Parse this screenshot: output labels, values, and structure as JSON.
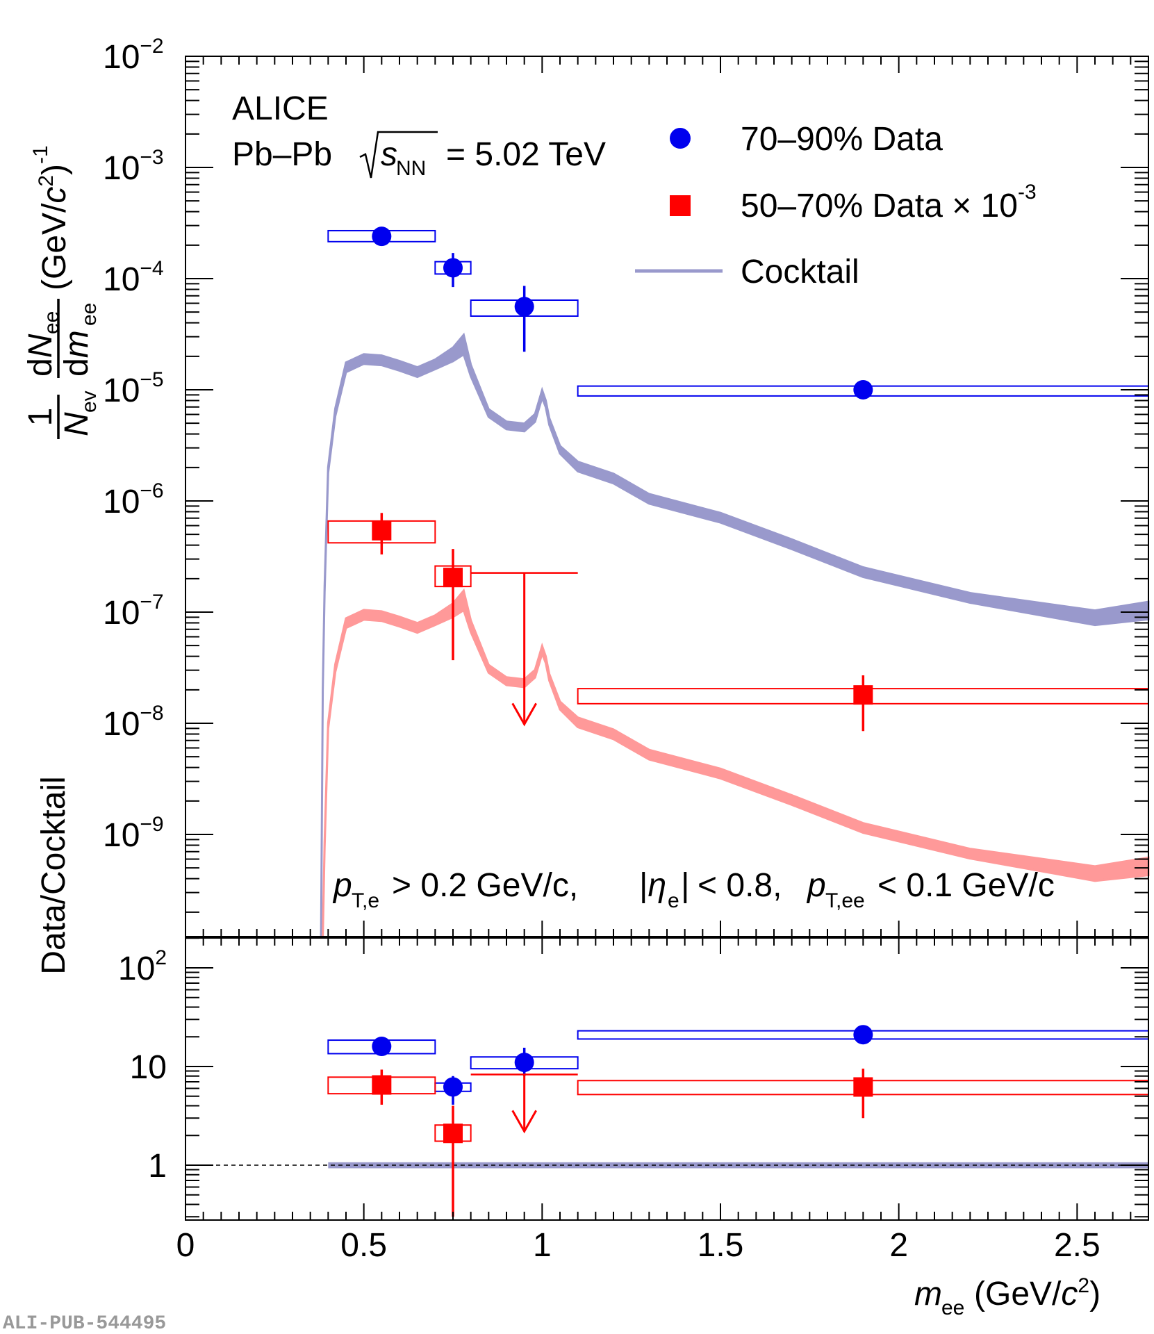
{
  "chart_data": {
    "type": "scatter",
    "experiment": "ALICE",
    "system": "Pb–Pb",
    "energy": "= 5.02 TeV",
    "cuts": {
      "pt_e": "> 0.2 GeV/c,",
      "eta": "< 0.8,",
      "pt_ee": "< 0.1 GeV/c"
    },
    "legend": [
      {
        "label": "70–90% Data",
        "color": "#0000ee",
        "marker": "circle"
      },
      {
        "label": "50–70% Data × 10",
        "exponent": "-3",
        "color": "#ff0000",
        "marker": "square"
      },
      {
        "label": "Cocktail",
        "color": "#9999cc",
        "marker": "band"
      }
    ],
    "xlabel": "m_ee (GeV/c²)",
    "xlim": [
      0,
      2.7
    ],
    "xticks": [
      0,
      0.5,
      1,
      1.5,
      2,
      2.5
    ],
    "xtick_labels": [
      "0",
      "0.5",
      "1",
      "1.5",
      "2",
      "2.5"
    ],
    "top_panel": {
      "ylabel": "(1/N_ev) dN_ee/dm_ee (GeV/c²)⁻¹",
      "yscale": "log",
      "ylim": [
        1.4e-10,
        0.01
      ],
      "ytick_labels": [
        {
          "exp": "−2",
          "value": 0.01
        },
        {
          "exp": "−3",
          "value": 0.001
        },
        {
          "exp": "−4",
          "value": 0.0001
        },
        {
          "exp": "−5",
          "value": 1e-05
        },
        {
          "exp": "−6",
          "value": 1e-06
        },
        {
          "exp": "−7",
          "value": 1e-07
        },
        {
          "exp": "−8",
          "value": 1e-08
        },
        {
          "exp": "−9",
          "value": 1e-09
        }
      ],
      "series": [
        {
          "name": "70–90% Data",
          "color": "#0000ee",
          "marker": "circle",
          "points": [
            {
              "x": 0.55,
              "xlo": 0.4,
              "xhi": 0.7,
              "y": 0.00024,
              "ylo": 0.00023,
              "yhi": 0.00025,
              "syslo": 0.000215,
              "syshi": 0.00027
            },
            {
              "x": 0.75,
              "xlo": 0.7,
              "xhi": 0.8,
              "y": 0.000125,
              "ylo": 8.4e-05,
              "yhi": 0.00017,
              "syslo": 0.00011,
              "syshi": 0.000142
            },
            {
              "x": 0.95,
              "xlo": 0.8,
              "xhi": 1.1,
              "y": 5.6e-05,
              "ylo": 2.2e-05,
              "yhi": 8.6e-05,
              "syslo": 4.6e-05,
              "syshi": 6.4e-05
            },
            {
              "x": 1.9,
              "xlo": 1.1,
              "xhi": 2.7,
              "y": 1e-05,
              "ylo": 8.7e-06,
              "yhi": 1.1e-05,
              "syslo": 8.8e-06,
              "syshi": 1.08e-05
            }
          ]
        },
        {
          "name": "50–70% Data × 10^-3",
          "color": "#ff0000",
          "marker": "square",
          "points": [
            {
              "x": 0.55,
              "xlo": 0.4,
              "xhi": 0.7,
              "y": 5.4e-07,
              "ylo": 3.3e-07,
              "yhi": 7.8e-07,
              "syslo": 4.2e-07,
              "syshi": 6.6e-07
            },
            {
              "x": 0.75,
              "xlo": 0.7,
              "xhi": 0.8,
              "y": 2.05e-07,
              "ylo": 3.7e-08,
              "yhi": 3.7e-07,
              "syslo": 1.7e-07,
              "syshi": 2.6e-07
            },
            {
              "x": 1.9,
              "xlo": 1.1,
              "xhi": 2.7,
              "y": 1.8e-08,
              "ylo": 8.5e-09,
              "yhi": 2.7e-08,
              "syslo": 1.5e-08,
              "syshi": 2.05e-08
            }
          ],
          "upper_limits": [
            {
              "x": 0.95,
              "xlo": 0.8,
              "xhi": 1.1,
              "y": 2.25e-07,
              "arrow_to": 9.8e-09
            }
          ]
        }
      ],
      "cocktail_band": {
        "x": [
          0.38,
          0.385,
          0.39,
          0.4,
          0.42,
          0.45,
          0.5,
          0.55,
          0.6,
          0.65,
          0.7,
          0.75,
          0.78,
          0.8,
          0.85,
          0.9,
          0.95,
          0.98,
          1.0,
          1.01,
          1.02,
          1.05,
          1.1,
          1.2,
          1.3,
          1.5,
          1.7,
          1.9,
          2.2,
          2.55,
          2.7
        ],
        "center": [
          1e-10,
          2e-08,
          1.6e-07,
          1.9e-06,
          6.3e-06,
          1.6e-05,
          1.9e-05,
          1.85e-05,
          1.65e-05,
          1.45e-05,
          1.7e-05,
          2.1e-05,
          2.6e-05,
          1.5e-05,
          6.2e-06,
          4.8e-06,
          4.6e-06,
          5.6e-06,
          9.2e-06,
          7.5e-06,
          5.2e-06,
          2.9e-06,
          2.05e-06,
          1.6e-06,
          1.05e-06,
          7.1e-07,
          4.1e-07,
          2.3e-07,
          1.35e-07,
          9e-08,
          1.05e-07
        ],
        "rel_halfwidth": [
          0.0,
          0.0,
          0.06,
          0.06,
          0.08,
          0.1,
          0.1,
          0.1,
          0.1,
          0.1,
          0.1,
          0.14,
          0.2,
          0.12,
          0.08,
          0.08,
          0.08,
          0.08,
          0.08,
          0.07,
          0.07,
          0.08,
          0.1,
          0.1,
          0.1,
          0.1,
          0.1,
          0.1,
          0.1,
          0.15,
          0.18
        ],
        "scale_50_70": 0.005,
        "color_70_90": "#9999cc",
        "color_50_70": "#ff9999"
      }
    },
    "bottom_panel": {
      "ylabel": "Data/Cocktail",
      "yscale": "log",
      "ylim": [
        0.3,
        200
      ],
      "ytick_labels": [
        {
          "label": "1",
          "value": 1
        },
        {
          "label": "10",
          "value": 10
        },
        {
          "label": "10",
          "exp": "2",
          "value": 100
        }
      ],
      "reference_line": 1,
      "series": [
        {
          "name": "70–90% Data",
          "color": "#0000ee",
          "marker": "circle",
          "points": [
            {
              "x": 0.55,
              "xlo": 0.4,
              "xhi": 0.7,
              "y": 16,
              "ylo": 15,
              "yhi": 17,
              "syslo": 13.5,
              "syshi": 18.5
            },
            {
              "x": 0.75,
              "xlo": 0.7,
              "xhi": 0.8,
              "y": 6.2,
              "ylo": 4.1,
              "yhi": 8.0,
              "syslo": 5.6,
              "syshi": 6.8
            },
            {
              "x": 0.95,
              "xlo": 0.8,
              "xhi": 1.1,
              "y": 11,
              "ylo": 8.0,
              "yhi": 15.5,
              "syslo": 9.5,
              "syshi": 12.5
            },
            {
              "x": 1.9,
              "xlo": 1.1,
              "xhi": 2.7,
              "y": 21,
              "ylo": 19.5,
              "yhi": 23,
              "syslo": 19,
              "syshi": 23
            }
          ]
        },
        {
          "name": "50–70% Data",
          "color": "#ff0000",
          "marker": "square",
          "points": [
            {
              "x": 0.55,
              "xlo": 0.4,
              "xhi": 0.7,
              "y": 6.5,
              "ylo": 4.1,
              "yhi": 9.3,
              "syslo": 5.3,
              "syshi": 7.8
            },
            {
              "x": 0.75,
              "xlo": 0.7,
              "xhi": 0.8,
              "y": 2.1,
              "ylo": 0.3,
              "yhi": 4.0,
              "syslo": 1.75,
              "syshi": 2.55
            },
            {
              "x": 1.9,
              "xlo": 1.1,
              "xhi": 2.7,
              "y": 6.2,
              "ylo": 3.0,
              "yhi": 9.5,
              "syslo": 5.2,
              "syshi": 7.2
            }
          ],
          "upper_limits": [
            {
              "x": 0.95,
              "xlo": 0.8,
              "xhi": 1.1,
              "y": 8.3,
              "arrow_to": 2.2
            }
          ]
        }
      ],
      "cocktail_band": {
        "x": [
          0.4,
          2.7
        ],
        "center": 1.0,
        "halfwidth": 0.07
      }
    },
    "watermark": "ALI-PUB-544495"
  }
}
